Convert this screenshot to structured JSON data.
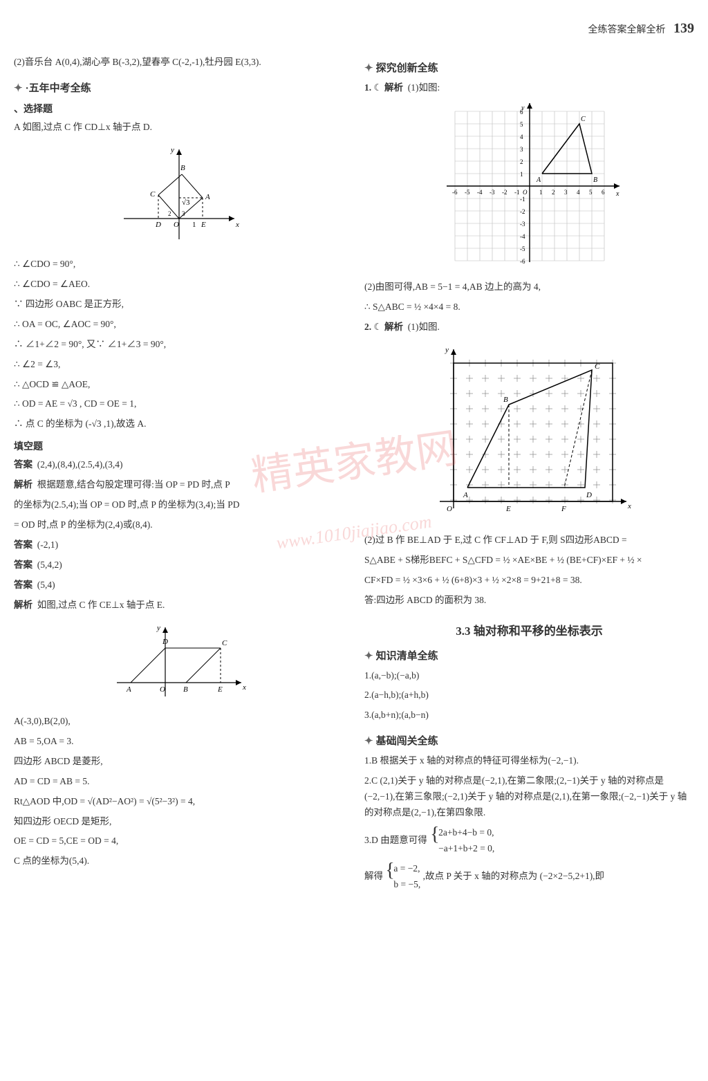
{
  "header": {
    "label": "全练答案全解全析",
    "page": "139"
  },
  "watermark": {
    "main": "精英家教网",
    "url": "www.1010jiajiao.com"
  },
  "left": {
    "intro": "(2)音乐台 A(0,4),湖心亭 B(-3,2),望春亭 C(-2,-1),牡丹园 E(3,3).",
    "section1": "·五年中考全练",
    "sub1": "、选择题",
    "a_line": "A  如图,过点 C 作 CD⊥x 轴于点 D.",
    "figure1": {
      "type": "diagram",
      "description": "coordinate axes with square OABC",
      "axis_color": "#000000",
      "background": "#ffffff",
      "labels": [
        "x",
        "y",
        "B",
        "C",
        "A",
        "D",
        "O",
        "E",
        "1",
        "2",
        "3"
      ],
      "sqrt3_label": "√3",
      "line_color": "#000000",
      "fontsize": 11
    },
    "p1": "∴ ∠CDO = 90°,",
    "p2": "∴ ∠CDO = ∠AEO.",
    "p3": "∵ 四边形 OABC 是正方形,",
    "p4": "∴ OA = OC, ∠AOC = 90°,",
    "p5": "∴ ∠1+∠2 = 90°, 又∵ ∠1+∠3 = 90°,",
    "p6": "∴ ∠2 = ∠3,",
    "p7": "∴ △OCD ≌ △AOE,",
    "p8": "∴ OD = AE = √3 , CD = OE = 1,",
    "p9": "∴ 点 C 的坐标为 (-√3 ,1),故选 A.",
    "sub2": "填空题",
    "ans1_label": "答案",
    "ans1_val": "(2,4),(8,4),(2.5,4),(3,4)",
    "exp1_label": "解析",
    "exp1_val": "根据题意,结合勾股定理可得:当 OP = PD 时,点 P",
    "exp1b": "的坐标为(2.5,4);当 OP = OD 时,点 P 的坐标为(3,4);当 PD",
    "exp1c": "= OD 时,点 P 的坐标为(2,4)或(8,4).",
    "ans2_label": "答案",
    "ans2_val": "(-2,1)",
    "ans3_label": "答案",
    "ans3_val": "(5,4,2)",
    "ans4_label": "答案",
    "ans4_val": "(5,4)",
    "exp4_label": "解析",
    "exp4_val": "如图,过点 C 作 CE⊥x 轴于点 E.",
    "figure2": {
      "type": "diagram",
      "description": "coordinate axes with rhombus ABCD",
      "axis_color": "#000000",
      "labels": [
        "x",
        "y",
        "D",
        "C",
        "A",
        "O",
        "B",
        "E"
      ],
      "line_color": "#000000",
      "fontsize": 11
    },
    "q1": "A(-3,0),B(2,0),",
    "q2": "AB = 5,OA = 3.",
    "q3": "四边形 ABCD 是菱形,",
    "q4": "AD = CD = AB = 5.",
    "q5": "Rt△AOD 中,OD = √(AD²−AO²) = √(5²−3²) = 4,",
    "q6": "知四边形 OECD 是矩形,",
    "q7": "OE = CD = 5,CE = OD = 4,",
    "q8": "C 点的坐标为(5,4)."
  },
  "right": {
    "section1": "探究创新全练",
    "item1_label": "1.",
    "item1_tag": "解析",
    "item1_text": "(1)如图:",
    "figure3": {
      "type": "grid_chart",
      "grid_color": "#bbbbbb",
      "axis_color": "#000000",
      "background": "#ffffff",
      "xrange": [
        -6,
        6
      ],
      "yrange": [
        -6,
        6
      ],
      "tick_step": 1,
      "points": {
        "A": [
          1,
          1
        ],
        "B": [
          5,
          1
        ],
        "C": [
          4,
          5
        ]
      },
      "triangle_color": "#000000",
      "labels": [
        "x",
        "y",
        "A",
        "B",
        "C",
        "O",
        "1",
        "2",
        "3",
        "4",
        "5",
        "6",
        "-2",
        "-3",
        "-4",
        "-5",
        "-6"
      ],
      "fontsize": 9
    },
    "item1b": "(2)由图可得,AB = 5−1 = 4,AB 边上的高为 4,",
    "item1c": "∴ S△ABC = ½ ×4×4 = 8.",
    "item2_label": "2.",
    "item2_tag": "解析",
    "item2_text": "(1)如图.",
    "figure4": {
      "type": "grid_chart",
      "grid_style": "dashed-cross",
      "grid_color": "#888888",
      "axis_color": "#000000",
      "background": "#ffffff",
      "shape": "quadrilateral with diagonals",
      "labels": [
        "O",
        "A",
        "B",
        "C",
        "D",
        "E",
        "F",
        "x",
        "y"
      ],
      "line_color": "#000000",
      "fontsize": 10
    },
    "item2b": "(2)过 B 作 BE⊥AD 于 E,过 C 作 CF⊥AD 于 F,则 S四边形ABCD =",
    "item2c": "S△ABE + S梯形BEFC + S△CFD = ½ ×AE×BE + ½ (BE+CF)×EF + ½ ×",
    "item2d": "CF×FD = ½ ×3×6 + ½ (6+8)×3 + ½ ×2×8 = 9+21+8 = 38.",
    "item2e": "答:四边形 ABCD 的面积为 38.",
    "section_title": "3.3  轴对称和平移的坐标表示",
    "section2": "知识清单全练",
    "k1": "1.(a,−b);(−a,b)",
    "k2": "2.(a−h,b);(a+h,b)",
    "k3": "3.(a,b+n);(a,b−n)",
    "section3": "基础闯关全练",
    "b1": "1.B  根据关于 x 轴的对称点的特征可得坐标为(−2,−1).",
    "b2": "2.C  (2,1)关于 y 轴的对称点是(−2,1),在第二象限;(2,−1)关于 y 轴的对称点是(−2,−1),在第三象限;(−2,1)关于 y 轴的对称点是(2,1),在第一象限;(−2,−1)关于 y 轴的对称点是(2,−1),在第四象限.",
    "b3": "3.D  由题意可得",
    "b3_eq1_top": "2a+b+4−b = 0,",
    "b3_eq1_bot": "−a+1+b+2 = 0,",
    "b3b": "解得",
    "b3_eq2_top": "a = −2,",
    "b3_eq2_bot": "b = −5,",
    "b3c": ",故点 P 关于 x 轴的对称点为 (−2×2−5,2+1),即"
  }
}
